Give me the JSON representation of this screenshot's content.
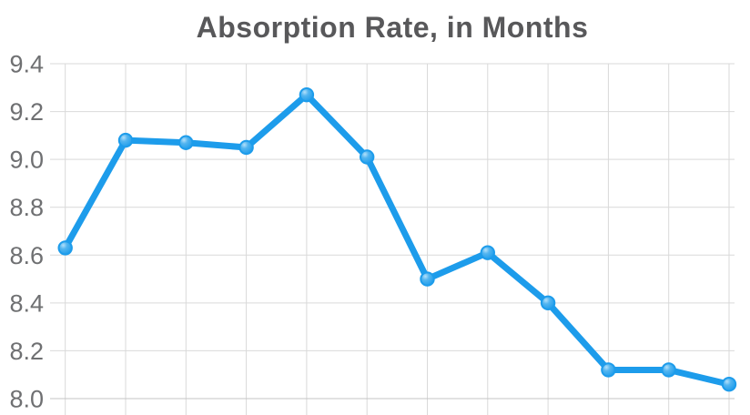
{
  "chart_data": {
    "type": "line",
    "title": "Absorption Rate, in Months",
    "values": [
      8.63,
      9.08,
      9.07,
      9.05,
      9.27,
      9.01,
      8.5,
      8.61,
      8.4,
      8.12,
      8.12,
      8.06
    ],
    "point_count": 12,
    "xlabel": "",
    "ylabel": "",
    "ylim": [
      8.0,
      9.4
    ],
    "yticks": [
      8.0,
      8.2,
      8.4,
      8.6,
      8.8,
      9.0,
      9.2,
      9.4
    ],
    "ytick_labels": [
      "8.0",
      "8.2",
      "8.4",
      "8.6",
      "8.8",
      "9.0",
      "9.2",
      "9.4"
    ],
    "x_axis_labels_visible": false,
    "grid": true,
    "legend_position": "none",
    "marker_style": "circle"
  },
  "colors": {
    "line": "#1d9ceb",
    "marker_fill": "#53b5f0",
    "marker_highlight": "#b3e0fa",
    "grid": "#d9d9d9",
    "baseline": "#c4c4c4",
    "axis_label": "#6f7072",
    "title": "#58585a",
    "background": "#ffffff"
  }
}
